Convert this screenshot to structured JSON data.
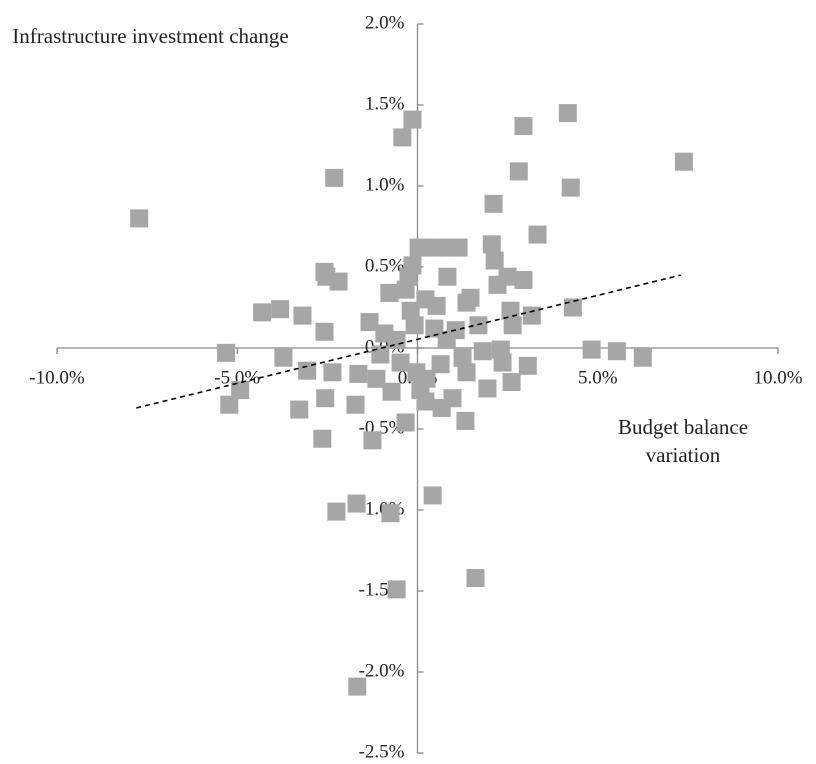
{
  "chart_data": {
    "type": "scatter",
    "y_label": "Infrastructure investment change",
    "x_label": "Budget balance variation",
    "xlim": [
      -10,
      10
    ],
    "ylim": [
      -2.5,
      2
    ],
    "xticks": [
      {
        "value": -10,
        "label": "-10.0%"
      },
      {
        "value": -5,
        "label": "-5.0%"
      },
      {
        "value": 0,
        "label": "0.0%"
      },
      {
        "value": 5,
        "label": "5.0%"
      },
      {
        "value": 10,
        "label": "10.0%"
      }
    ],
    "yticks": [
      {
        "value": -2.5,
        "label": "-2.5%"
      },
      {
        "value": -2,
        "label": "-2.0%"
      },
      {
        "value": -1.5,
        "label": "-1.5%"
      },
      {
        "value": -1,
        "label": "-1.0%"
      },
      {
        "value": -0.5,
        "label": "-0.5%"
      },
      {
        "value": 0,
        "label": "0.0%"
      },
      {
        "value": 0.5,
        "label": "0.5%"
      },
      {
        "value": 1,
        "label": "1.0%"
      },
      {
        "value": 1.5,
        "label": "1.5%"
      },
      {
        "value": 2,
        "label": "2.0%"
      }
    ],
    "color": "#a6a6a6",
    "x": [
      -7.72,
      -5.31,
      -5.22,
      -4.92,
      -4.31,
      -3.81,
      -3.72,
      -3.19,
      -3.28,
      -3.06,
      -2.58,
      -2.53,
      -2.58,
      -2.56,
      -2.64,
      -2.31,
      -2.19,
      -2.36,
      -2.25,
      -1.72,
      -1.69,
      -1.67,
      -1.64,
      -1.33,
      -1.25,
      -1.14,
      -0.92,
      -0.78,
      -0.72,
      -0.75,
      -0.58,
      -0.42,
      -0.14,
      -0.58,
      -0.47,
      -0.33,
      -0.33,
      -0.25,
      -0.19,
      -0.14,
      -0.08,
      -0.03,
      0.03,
      0.08,
      0.22,
      0.22,
      0.42,
      0.47,
      0.47,
      0.64,
      0.67,
      0.83,
      0.86,
      0.81,
      0.97,
      1.14,
      1.25,
      1.33,
      1.36,
      1.36,
      1.47,
      1.61,
      1.69,
      1.81,
      1.94,
      2.06,
      2.11,
      2.14,
      2.22,
      2.31,
      2.36,
      2.5,
      2.58,
      2.61,
      2.64,
      2.81,
      2.94,
      2.94,
      3.06,
      3.17,
      3.33,
      4.17,
      4.25,
      4.31,
      4.83,
      5.53,
      6.25,
      7.39,
      -1.03,
      0.53,
      1.06,
      0.25
    ],
    "y": [
      0.8,
      -0.03,
      -0.35,
      -0.26,
      0.22,
      0.24,
      -0.06,
      0.2,
      -0.38,
      -0.14,
      0.47,
      0.44,
      0.1,
      -0.31,
      -0.56,
      1.05,
      0.41,
      -0.15,
      -1.01,
      -0.35,
      -0.96,
      -2.09,
      -0.16,
      0.16,
      -0.57,
      -0.19,
      0.09,
      0.34,
      -0.27,
      -1.02,
      -1.49,
      1.3,
      1.41,
      0.05,
      -0.09,
      0.36,
      -0.46,
      0.44,
      0.23,
      0.51,
      0.14,
      -0.15,
      0.62,
      -0.26,
      0.3,
      -0.33,
      -0.91,
      0.62,
      0.12,
      -0.1,
      -0.37,
      0.44,
      0.62,
      0.05,
      -0.31,
      0.62,
      -0.06,
      -0.45,
      0.28,
      -0.15,
      0.31,
      -1.42,
      0.14,
      -0.02,
      -0.25,
      0.64,
      0.89,
      0.54,
      0.39,
      -0.01,
      -0.09,
      0.44,
      0.23,
      -0.21,
      0.14,
      1.09,
      1.37,
      0.42,
      -0.11,
      0.2,
      0.7,
      1.45,
      0.99,
      0.25,
      -0.01,
      -0.02,
      -0.06,
      1.15,
      -0.04,
      0.26,
      0.11,
      -0.19
    ],
    "trendline": {
      "x": [
        -7.8,
        7.3
      ],
      "y": [
        -0.37,
        0.45
      ]
    }
  }
}
